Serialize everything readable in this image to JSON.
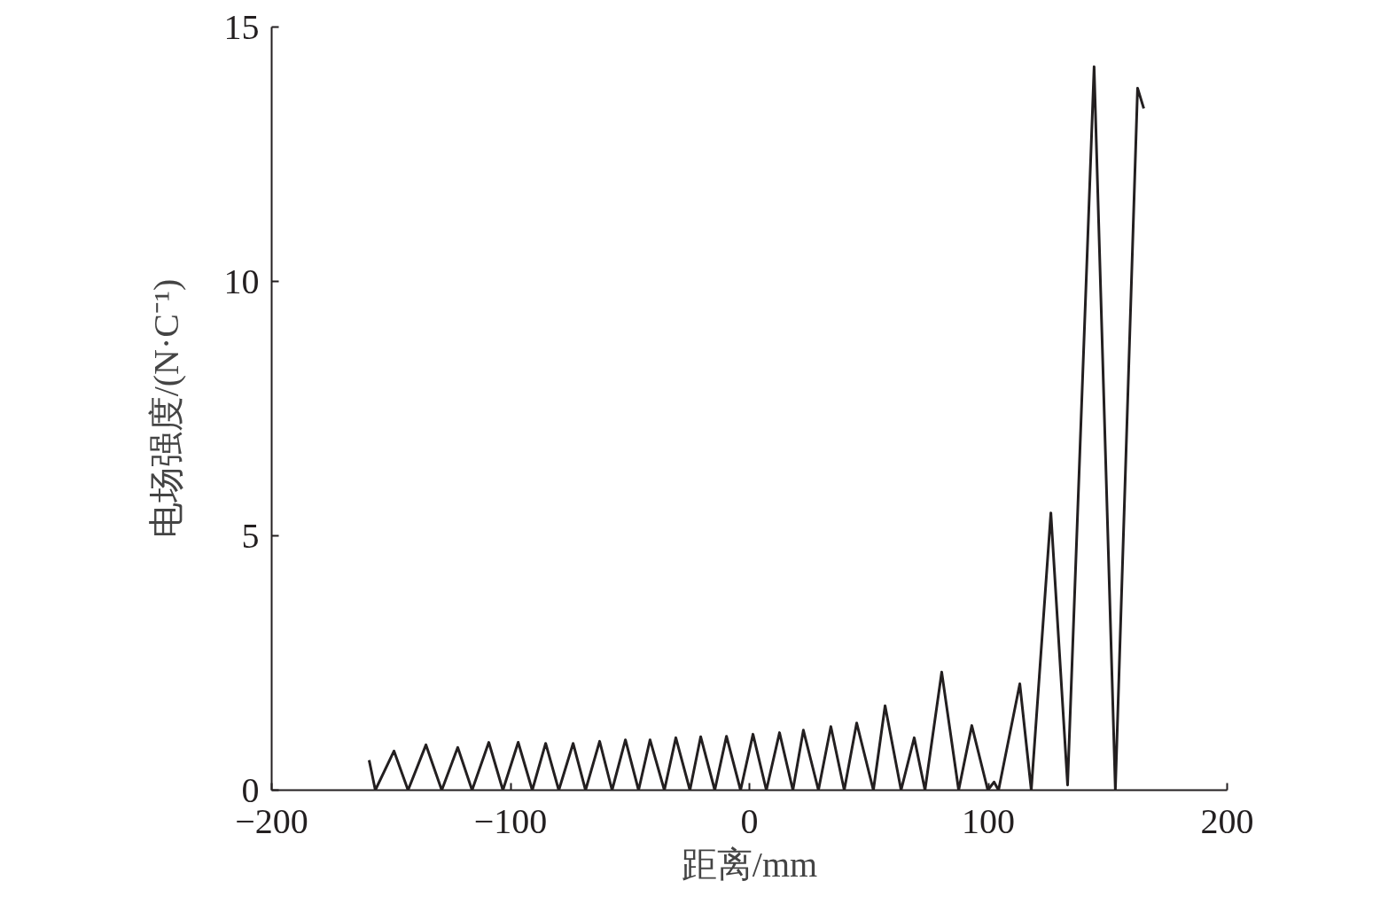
{
  "chart_data": {
    "type": "line",
    "xlabel": "距离/mm",
    "ylabel": "电场强度/(N·C⁻¹)",
    "xlim": [
      -200,
      200
    ],
    "ylim": [
      0,
      15
    ],
    "xticks": [
      {
        "value": -200,
        "label": "−200"
      },
      {
        "value": -100,
        "label": "−100"
      },
      0,
      100,
      200
    ],
    "yticks": [
      0,
      5,
      10,
      15
    ],
    "grid": false,
    "marker": "none",
    "line_style": "solid",
    "series": [
      {
        "color": "#231f20",
        "x": [
          -159.2,
          -156.6,
          -148.8,
          -142.9,
          -135.4,
          -128.8,
          -122.1,
          -116.1,
          -109.1,
          -103.2,
          -96.8,
          -90.9,
          -85.3,
          -79.8,
          -73.8,
          -68.6,
          -62.7,
          -57.5,
          -51.9,
          -46.4,
          -41.6,
          -35.6,
          -30.8,
          -24.9,
          -20.4,
          -14.5,
          -9.6,
          -3.7,
          1.5,
          7.1,
          12.6,
          18.2,
          22.6,
          28.9,
          34.1,
          39.7,
          44.9,
          51.9,
          56.8,
          63.5,
          69.0,
          73.5,
          80.5,
          87.6,
          93.1,
          99.8,
          102.4,
          104.3,
          113.2,
          118.0,
          126.2,
          133.2,
          144.3,
          153.2,
          162.5,
          165.1
        ],
        "values": [
          0.59,
          0,
          0.77,
          0,
          0.89,
          0,
          0.84,
          0,
          0.94,
          0,
          0.94,
          0,
          0.92,
          0,
          0.92,
          0,
          0.96,
          0,
          0.99,
          0,
          0.99,
          0,
          1.03,
          0,
          1.05,
          0,
          1.06,
          0,
          1.1,
          0,
          1.13,
          0,
          1.18,
          0,
          1.25,
          0,
          1.32,
          0,
          1.66,
          0,
          1.03,
          0,
          2.32,
          0,
          1.27,
          0,
          0.16,
          0,
          2.09,
          0,
          5.45,
          0.1,
          14.22,
          0,
          13.8,
          13.4
        ]
      }
    ]
  }
}
